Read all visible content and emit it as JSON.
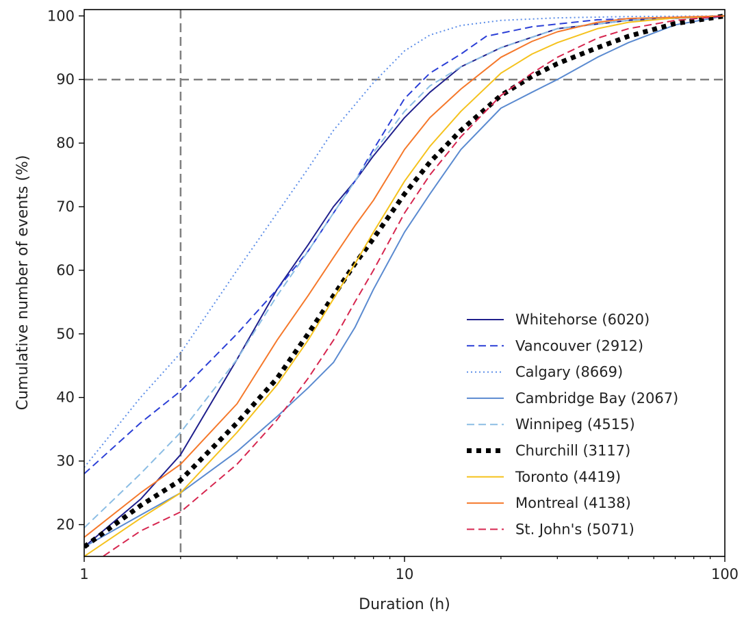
{
  "chart_data": {
    "type": "line",
    "xlabel": "Duration (h)",
    "ylabel": "Cumulative number of events (%)",
    "xscale": "log",
    "xlim": [
      1,
      100
    ],
    "ylim": [
      15,
      101
    ],
    "xticks": [
      1,
      10,
      100
    ],
    "xtick_labels": [
      "1",
      "10",
      "100"
    ],
    "yticks": [
      20,
      30,
      40,
      50,
      60,
      70,
      80,
      90,
      100
    ],
    "ytick_labels": [
      "20",
      "30",
      "40",
      "50",
      "60",
      "70",
      "80",
      "90",
      "100"
    ],
    "grid": false,
    "legend_position": "lower-right",
    "reference_lines": [
      {
        "orientation": "horizontal",
        "value": 90,
        "style": "dashed",
        "color": "#7f7f7f"
      },
      {
        "orientation": "vertical",
        "value": 2,
        "style": "dashed",
        "color": "#7f7f7f"
      }
    ],
    "series": [
      {
        "name": "Whitehorse (6020)",
        "color": "#1f1f8c",
        "dash": "solid",
        "x": [
          1,
          1.5,
          2,
          3,
          4,
          5,
          6,
          7,
          8,
          10,
          12,
          15,
          20,
          30,
          50,
          100
        ],
        "y": [
          16.5,
          24,
          31,
          46,
          57,
          64,
          70,
          74,
          78,
          84,
          88,
          92,
          95,
          98,
          99.3,
          100
        ]
      },
      {
        "name": "Vancouver (2912)",
        "color": "#2b3fd6",
        "dash": "dashed",
        "x": [
          1,
          1.5,
          2,
          3,
          4,
          5,
          6,
          7,
          8,
          10,
          12,
          15,
          18,
          25,
          40,
          100
        ],
        "y": [
          28,
          36,
          41,
          50,
          57,
          63,
          69,
          74,
          79,
          87,
          91,
          94,
          96.8,
          98.3,
          99.4,
          100
        ]
      },
      {
        "name": "Calgary (8669)",
        "color": "#5b8de8",
        "dash": "dotted",
        "x": [
          1,
          1.5,
          2,
          3,
          4,
          5,
          6,
          8,
          10,
          12,
          15,
          20,
          30,
          50,
          100
        ],
        "y": [
          29,
          40,
          47,
          60,
          69,
          76,
          82,
          89.5,
          94.5,
          97,
          98.5,
          99.3,
          99.7,
          99.9,
          100
        ]
      },
      {
        "name": "Cambridge Bay (2067)",
        "color": "#5a8ad0",
        "dash": "solid",
        "x": [
          1,
          1.5,
          2,
          3,
          4,
          5,
          6,
          7,
          8,
          10,
          12,
          15,
          20,
          25,
          30,
          40,
          50,
          70,
          100
        ],
        "y": [
          16.5,
          21.5,
          25,
          31.5,
          37,
          41.5,
          45.5,
          51,
          57,
          66,
          72,
          79,
          85.5,
          88,
          90,
          93.5,
          95.8,
          98.6,
          100
        ]
      },
      {
        "name": "Winnipeg (4515)",
        "color": "#8bbde4",
        "dash": "dashed",
        "x": [
          1,
          1.5,
          2,
          3,
          4,
          5,
          6,
          7,
          8,
          10,
          12,
          15,
          20,
          30,
          50,
          100
        ],
        "y": [
          19.5,
          28,
          34.5,
          46,
          56,
          63,
          69,
          74,
          78.5,
          85,
          89,
          92,
          95,
          98,
          99.3,
          100
        ]
      },
      {
        "name": "Churchill (3117)",
        "color": "#000000",
        "dash": "thickdot",
        "x": [
          1,
          1.5,
          2,
          3,
          4,
          5,
          6,
          7,
          8,
          10,
          12,
          15,
          20,
          25,
          30,
          40,
          50,
          70,
          100
        ],
        "y": [
          16.5,
          23,
          27,
          36,
          43,
          50,
          56,
          61,
          65,
          72,
          77,
          82,
          87.5,
          90.5,
          92.5,
          95,
          96.8,
          98.8,
          100
        ]
      },
      {
        "name": "Toronto (4419)",
        "color": "#f5c21d",
        "dash": "solid",
        "x": [
          1,
          1.5,
          2,
          3,
          4,
          5,
          6,
          7,
          8,
          10,
          12,
          15,
          20,
          25,
          30,
          40,
          50,
          70,
          100
        ],
        "y": [
          15,
          21,
          25,
          34.5,
          42,
          49,
          55.5,
          61,
          66,
          74,
          79.5,
          85,
          91,
          94,
          95.8,
          98,
          99,
          99.7,
          100
        ]
      },
      {
        "name": "Montreal (4138)",
        "color": "#f5782a",
        "dash": "solid",
        "x": [
          1,
          1.5,
          2,
          3,
          4,
          5,
          6,
          7,
          8,
          10,
          12,
          15,
          20,
          25,
          30,
          40,
          50,
          100
        ],
        "y": [
          18,
          25,
          29.5,
          39,
          49,
          56,
          62,
          67,
          71,
          79,
          84,
          88.5,
          93.5,
          96,
          97.5,
          99,
          99.6,
          100
        ]
      },
      {
        "name": "St. John's (5071)",
        "color": "#d6264f",
        "dash": "dashed",
        "x": [
          1,
          1.5,
          2,
          3,
          4,
          5,
          6,
          7,
          8,
          10,
          12,
          15,
          20,
          25,
          30,
          40,
          50,
          70,
          100
        ],
        "y": [
          13,
          19,
          22,
          29.5,
          36.5,
          43,
          49,
          55,
          60,
          69,
          75,
          81,
          87.5,
          91,
          93.5,
          96.5,
          98,
          99.3,
          100
        ]
      }
    ]
  }
}
